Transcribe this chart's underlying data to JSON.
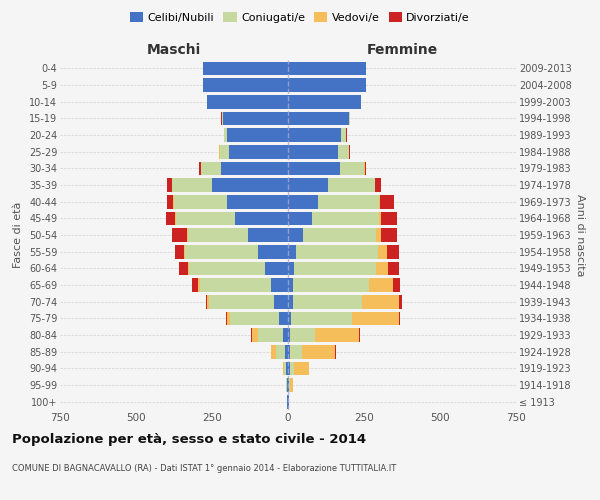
{
  "age_groups": [
    "100+",
    "95-99",
    "90-94",
    "85-89",
    "80-84",
    "75-79",
    "70-74",
    "65-69",
    "60-64",
    "55-59",
    "50-54",
    "45-49",
    "40-44",
    "35-39",
    "30-34",
    "25-29",
    "20-24",
    "15-19",
    "10-14",
    "5-9",
    "0-4"
  ],
  "birth_years": [
    "≤ 1913",
    "1914-1918",
    "1919-1923",
    "1924-1928",
    "1929-1933",
    "1934-1938",
    "1939-1943",
    "1944-1948",
    "1949-1953",
    "1954-1958",
    "1959-1963",
    "1964-1968",
    "1969-1973",
    "1974-1978",
    "1979-1983",
    "1984-1988",
    "1989-1993",
    "1994-1998",
    "1999-2003",
    "2004-2008",
    "2009-2013"
  ],
  "maschi": {
    "celibi": [
      2,
      3,
      5,
      10,
      18,
      30,
      45,
      55,
      75,
      100,
      130,
      175,
      200,
      250,
      220,
      195,
      200,
      215,
      265,
      280,
      280
    ],
    "coniugati": [
      0,
      2,
      8,
      30,
      80,
      160,
      215,
      235,
      250,
      240,
      200,
      195,
      175,
      130,
      65,
      30,
      10,
      3,
      0,
      0,
      0
    ],
    "vedovi": [
      0,
      2,
      5,
      15,
      20,
      10,
      5,
      5,
      3,
      2,
      2,
      2,
      2,
      2,
      2,
      1,
      0,
      0,
      0,
      0,
      0
    ],
    "divorziati": [
      0,
      0,
      0,
      2,
      3,
      5,
      5,
      20,
      30,
      30,
      50,
      30,
      20,
      15,
      5,
      2,
      2,
      1,
      0,
      0,
      0
    ]
  },
  "femmine": {
    "nubili": [
      2,
      3,
      5,
      5,
      5,
      10,
      15,
      15,
      20,
      25,
      50,
      80,
      100,
      130,
      170,
      165,
      175,
      200,
      240,
      255,
      255
    ],
    "coniugate": [
      0,
      2,
      15,
      40,
      85,
      200,
      230,
      250,
      270,
      270,
      240,
      220,
      200,
      155,
      80,
      35,
      15,
      3,
      0,
      0,
      0
    ],
    "vedove": [
      0,
      10,
      50,
      110,
      145,
      155,
      120,
      80,
      40,
      30,
      15,
      5,
      3,
      2,
      2,
      1,
      1,
      0,
      0,
      0,
      0
    ],
    "divorziate": [
      0,
      0,
      0,
      2,
      3,
      5,
      10,
      25,
      35,
      40,
      55,
      55,
      45,
      20,
      5,
      2,
      2,
      1,
      0,
      0,
      0
    ]
  },
  "colors": {
    "celibi": "#4472C4",
    "coniugati": "#C5D9A0",
    "vedovi": "#F6BE5B",
    "divorziati": "#CC2222"
  },
  "xlim": 750,
  "title": "Popolazione per età, sesso e stato civile - 2014",
  "subtitle": "COMUNE DI BAGNACAVALLO (RA) - Dati ISTAT 1° gennaio 2014 - Elaborazione TUTTITALIA.IT",
  "ylabel_left": "Fasce di età",
  "ylabel_right": "Anni di nascita",
  "xlabel_maschi": "Maschi",
  "xlabel_femmine": "Femmine",
  "bg_color": "#f5f5f5",
  "grid_color": "#cccccc"
}
